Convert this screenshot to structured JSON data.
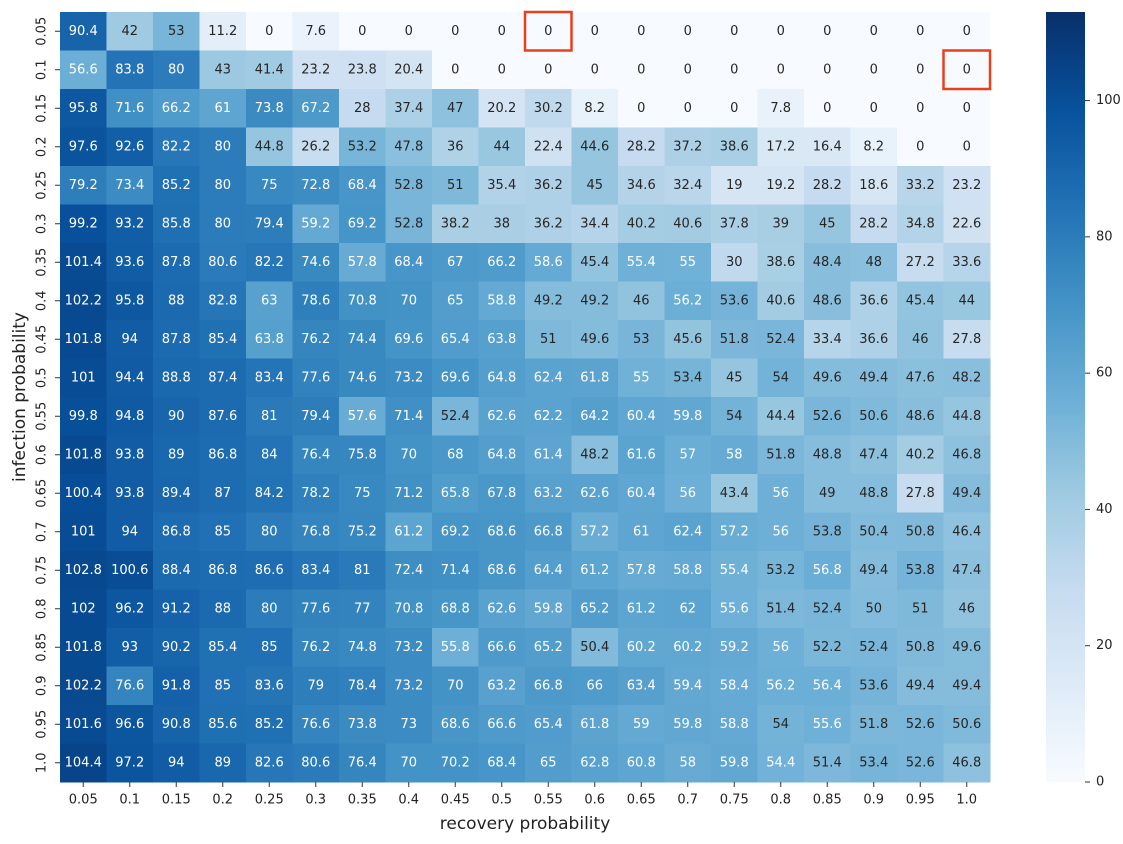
{
  "chart_data": {
    "type": "heatmap",
    "x_label": "recovery probability",
    "y_label": "infection probability",
    "x_categories": [
      "0.05",
      "0.1",
      "0.15",
      "0.2",
      "0.25",
      "0.3",
      "0.35",
      "0.4",
      "0.45",
      "0.5",
      "0.55",
      "0.6",
      "0.65",
      "0.7",
      "0.75",
      "0.8",
      "0.85",
      "0.9",
      "0.95",
      "1.0"
    ],
    "y_categories": [
      "0.05",
      "0.1",
      "0.15",
      "0.2",
      "0.25",
      "0.3",
      "0.35",
      "0.4",
      "0.45",
      "0.5",
      "0.55",
      "0.6",
      "0.65",
      "0.7",
      "0.75",
      "0.8",
      "0.85",
      "0.9",
      "0.95",
      "1.0"
    ],
    "values": [
      [
        90.4,
        42,
        53,
        11.2,
        0,
        7.6,
        0,
        0,
        0,
        0,
        0,
        0,
        0,
        0,
        0,
        0,
        0,
        0,
        0,
        0
      ],
      [
        56.6,
        83.8,
        80,
        43,
        41.4,
        23.2,
        23.8,
        20.4,
        0,
        0,
        0,
        0,
        0,
        0,
        0,
        0,
        0,
        0,
        0,
        0
      ],
      [
        95.8,
        71.6,
        66.2,
        61,
        73.8,
        67.2,
        28,
        37.4,
        47,
        20.2,
        30.2,
        8.2,
        0,
        0,
        0,
        7.8,
        0,
        0,
        0,
        0
      ],
      [
        97.6,
        92.6,
        82.2,
        80,
        44.8,
        26.2,
        53.2,
        47.8,
        36,
        44,
        22.4,
        44.6,
        28.2,
        37.2,
        38.6,
        17.2,
        16.4,
        8.2,
        0,
        0
      ],
      [
        79.2,
        73.4,
        85.2,
        80,
        75,
        72.8,
        68.4,
        52.8,
        51,
        35.4,
        36.2,
        45,
        34.6,
        32.4,
        19,
        19.2,
        28.2,
        18.6,
        33.2,
        23.2
      ],
      [
        99.2,
        93.2,
        85.8,
        80,
        79.4,
        59.2,
        69.2,
        52.8,
        38.2,
        38,
        36.2,
        34.4,
        40.2,
        40.6,
        37.8,
        39,
        45,
        28.2,
        34.8,
        22.6
      ],
      [
        101.4,
        93.6,
        87.8,
        80.6,
        82.2,
        74.6,
        57.8,
        68.4,
        67,
        66.2,
        58.6,
        45.4,
        55.4,
        55,
        30,
        38.6,
        48.4,
        48,
        27.2,
        33.6
      ],
      [
        102.2,
        95.8,
        88,
        82.8,
        63,
        78.6,
        70.8,
        70,
        65,
        58.8,
        49.2,
        49.2,
        46,
        56.2,
        53.6,
        40.6,
        48.6,
        36.6,
        45.4,
        44
      ],
      [
        101.8,
        94,
        87.8,
        85.4,
        63.8,
        76.2,
        74.4,
        69.6,
        65.4,
        63.8,
        51,
        49.6,
        53,
        45.6,
        51.8,
        52.4,
        33.4,
        36.6,
        46,
        27.8
      ],
      [
        101,
        94.4,
        88.8,
        87.4,
        83.4,
        77.6,
        74.6,
        73.2,
        69.6,
        64.8,
        62.4,
        61.8,
        55,
        53.4,
        45,
        54,
        49.6,
        49.4,
        47.6,
        48.2
      ],
      [
        99.8,
        94.8,
        90,
        87.6,
        81,
        79.4,
        57.6,
        71.4,
        52.4,
        62.6,
        62.2,
        64.2,
        60.4,
        59.8,
        54,
        44.4,
        52.6,
        50.6,
        48.6,
        44.8
      ],
      [
        101.8,
        93.8,
        89,
        86.8,
        84,
        76.4,
        75.8,
        70,
        68,
        64.8,
        61.4,
        48.2,
        61.6,
        57,
        58,
        51.8,
        48.8,
        47.4,
        40.2,
        46.8
      ],
      [
        100.4,
        93.8,
        89.4,
        87,
        84.2,
        78.2,
        75,
        71.2,
        65.8,
        67.8,
        63.2,
        62.6,
        60.4,
        56,
        43.4,
        56,
        49,
        48.8,
        27.8,
        49.4
      ],
      [
        101,
        94,
        86.8,
        85,
        80,
        76.8,
        75.2,
        61.2,
        69.2,
        68.6,
        66.8,
        57.2,
        61,
        62.4,
        57.2,
        56,
        53.8,
        50.4,
        50.8,
        46.4
      ],
      [
        102.8,
        100.6,
        88.4,
        86.8,
        86.6,
        83.4,
        81,
        72.4,
        71.4,
        68.6,
        64.4,
        61.2,
        57.8,
        58.8,
        55.4,
        53.2,
        56.8,
        49.4,
        53.8,
        47.4
      ],
      [
        102,
        96.2,
        91.2,
        88,
        80,
        77.6,
        77,
        70.8,
        68.8,
        62.6,
        59.8,
        65.2,
        61.2,
        62,
        55.6,
        51.4,
        52.4,
        50,
        51,
        46
      ],
      [
        101.8,
        93,
        90.2,
        85.4,
        85,
        76.2,
        74.8,
        73.2,
        55.8,
        66.6,
        65.2,
        50.4,
        60.2,
        60.2,
        59.2,
        56,
        52.2,
        52.4,
        50.8,
        49.6
      ],
      [
        102.2,
        76.6,
        91.8,
        85,
        83.6,
        79,
        78.4,
        73.2,
        70,
        63.2,
        66.8,
        66,
        63.4,
        59.4,
        58.4,
        56.2,
        56.4,
        53.6,
        49.4,
        49.4
      ],
      [
        101.6,
        96.6,
        90.8,
        85.6,
        85.2,
        76.6,
        73.8,
        73,
        68.6,
        66.6,
        65.4,
        61.8,
        59,
        59.8,
        58.8,
        54,
        55.6,
        51.8,
        52.6,
        50.6
      ],
      [
        104.4,
        97.2,
        94,
        89,
        82.6,
        80.6,
        76.4,
        70,
        70.2,
        68.4,
        65,
        62.8,
        60.8,
        58,
        59.8,
        54.4,
        51.4,
        53.4,
        52.6,
        46.8
      ]
    ],
    "colormap": [
      "#f7fbff",
      "#deebf7",
      "#c6dbef",
      "#9ecae1",
      "#6baed6",
      "#4292c6",
      "#2171b5",
      "#08519c",
      "#08306b"
    ],
    "clim": [
      0,
      113
    ],
    "cticks": [
      0,
      20,
      40,
      60,
      80,
      100
    ],
    "annotate": true
  }
}
